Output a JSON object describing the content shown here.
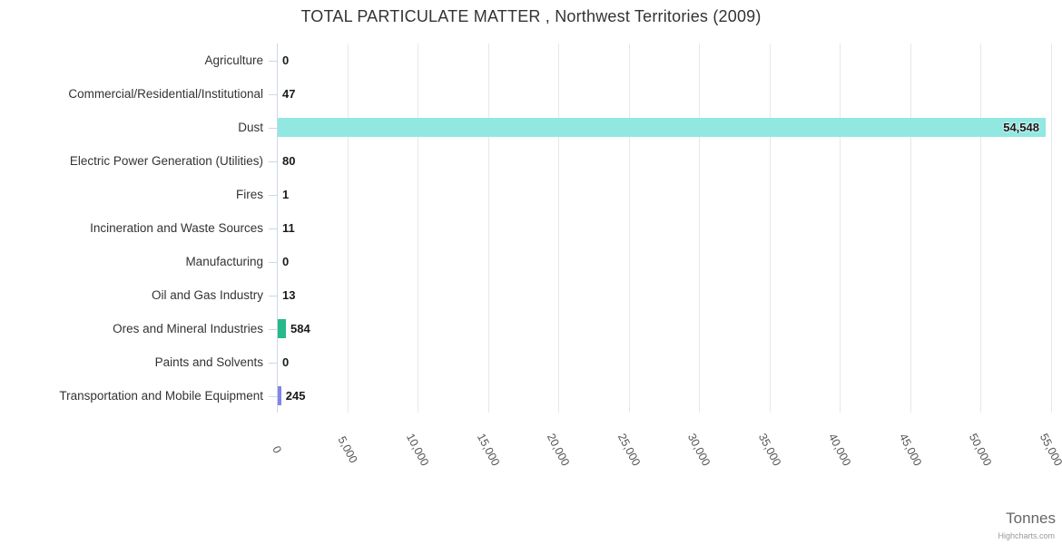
{
  "title": "TOTAL PARTICULATE MATTER , Northwest Territories (2009)",
  "credits_label": "Highcharts.com",
  "chart_data": {
    "type": "bar",
    "orientation": "horizontal",
    "title": "TOTAL PARTICULATE MATTER , Northwest Territories (2009)",
    "xlabel": "Tonnes",
    "ylabel": "",
    "categories": [
      "Agriculture",
      "Commercial/Residential/Institutional",
      "Dust",
      "Electric Power Generation (Utilities)",
      "Fires",
      "Incineration and Waste Sources",
      "Manufacturing",
      "Oil and Gas Industry",
      "Ores and Mineral Industries",
      "Paints and Solvents",
      "Transportation and Mobile Equipment"
    ],
    "values": [
      0,
      47,
      54548,
      80,
      1,
      11,
      0,
      13,
      584,
      0,
      245
    ],
    "value_labels": [
      "0",
      "47",
      "54,548",
      "80",
      "1",
      "11",
      "0",
      "13",
      "584",
      "0",
      "245"
    ],
    "bar_colors": [
      null,
      null,
      "#91e8e1",
      null,
      null,
      null,
      null,
      null,
      "#26b98a",
      null,
      "#8085e9"
    ],
    "xlim": [
      0,
      55000
    ],
    "x_ticks": [
      "0",
      "5,000",
      "10,000",
      "15,000",
      "20,000",
      "25,000",
      "30,000",
      "35,000",
      "40,000",
      "45,000",
      "50,000",
      "55,000"
    ],
    "grid": true,
    "legend": false,
    "colors": {
      "grid": "#e7e7e7",
      "axis": "#ccd6eb",
      "title_text": "#333333",
      "category_text": "#333333",
      "value_text": "#1a1a1a",
      "tick_text": "#555555",
      "axis_title_text": "#666666",
      "credits_text": "#999999"
    }
  }
}
